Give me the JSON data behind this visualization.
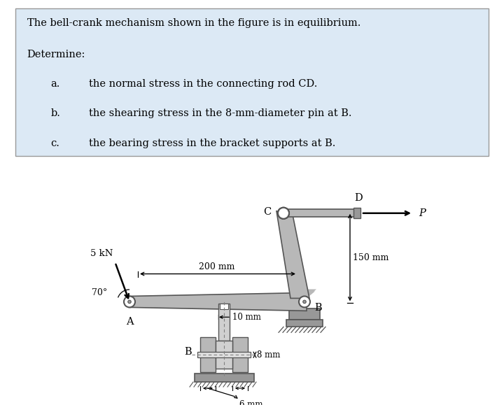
{
  "bg_color": "#dce9f5",
  "text_color": "#000000",
  "title_line1": "The bell-crank mechanism shown in the figure is in equilibrium.",
  "title_line2": "Determine:",
  "items": [
    [
      "a.",
      "the normal stress in the connecting rod CD."
    ],
    [
      "b.",
      "the shearing stress in the 8-mm-diameter pin at B."
    ],
    [
      "c.",
      "the bearing stress in the bracket supports at B."
    ]
  ],
  "mech_light": "#b8b8b8",
  "mech_mid": "#989898",
  "mech_dark": "#555555",
  "ground_dark": "#555555",
  "ground_fill": "#888888"
}
